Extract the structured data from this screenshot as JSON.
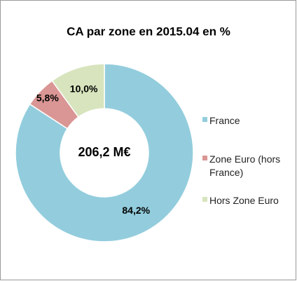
{
  "chart_data": {
    "type": "donut",
    "title": "CA par zone en 2015.04 en %",
    "center_label": "206,2 M€",
    "categories": [
      "France",
      "Zone Euro (hors France)",
      "Hors Zone Euro"
    ],
    "values": [
      84.2,
      5.8,
      10.0
    ],
    "value_labels": [
      "84,2%",
      "5,8%",
      "10,0%"
    ],
    "colors": [
      "#93cddd",
      "#d99694",
      "#d7e4bd"
    ],
    "legend": "right"
  }
}
